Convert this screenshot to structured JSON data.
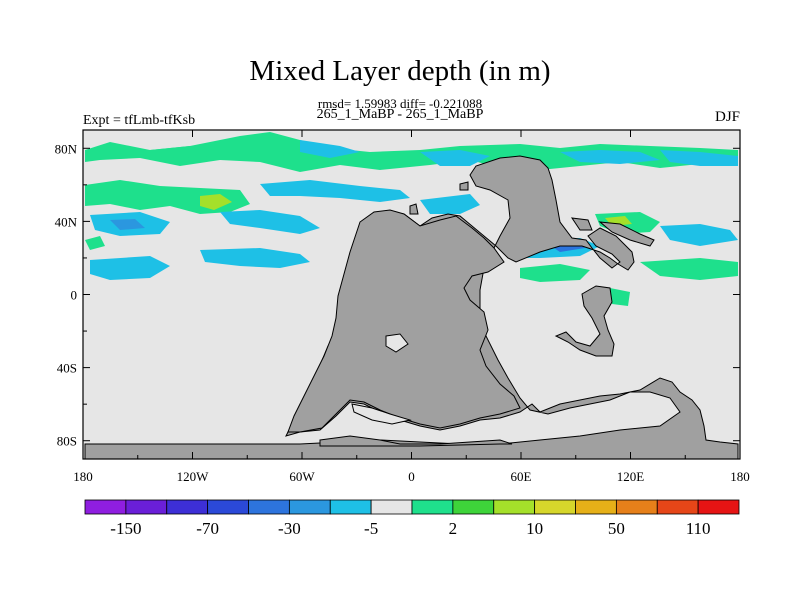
{
  "title": "Mixed Layer depth (in m)",
  "stats": "rmsd= 1.59983 diff= -0.221088",
  "runs": "265_1_MaBP - 265_1_MaBP",
  "expt": "Expt = tfLmb-tfKsb",
  "season": "DJF",
  "map": {
    "lon_range": [
      -180,
      180
    ],
    "lat_range": [
      -90,
      90
    ],
    "x_ticks": [
      "180",
      "120W",
      "60W",
      "0",
      "60E",
      "120E",
      "180"
    ],
    "y_ticks": [
      "80N",
      "40N",
      "0",
      "40S",
      "80S"
    ],
    "land_color": "#a0a0a0",
    "ocean_color": "#e6e6e6"
  },
  "colorbar": {
    "colors": [
      "#8f1ee0",
      "#6a1fd8",
      "#3d2fd6",
      "#2b49d8",
      "#2d74dd",
      "#2b97df",
      "#1ec0e6",
      "#e6e6e6",
      "#1fe08c",
      "#3ed43a",
      "#a5e02a",
      "#d6d62b",
      "#e6b018",
      "#e6801a",
      "#e64618",
      "#e61414"
    ],
    "labels": [
      "-150",
      "-70",
      "-30",
      "-5",
      "2",
      "10",
      "50",
      "110"
    ]
  },
  "chart_data": {
    "type": "heatmap",
    "title": "Mixed Layer depth (in m)",
    "levels": [
      -150,
      -70,
      -30,
      -5,
      2,
      10,
      50,
      110
    ],
    "x_range": [
      -180,
      180
    ],
    "y_range": [
      -90,
      90
    ],
    "season": "DJF"
  }
}
